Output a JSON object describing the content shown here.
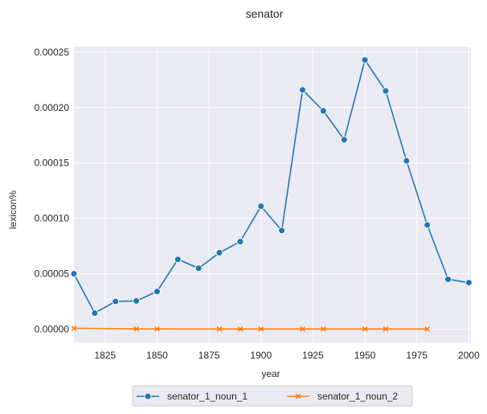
{
  "chart_data": {
    "type": "line",
    "title": "senator",
    "xlabel": "year",
    "ylabel": "lexicon%",
    "xlim": [
      1810,
      2001
    ],
    "ylim": [
      -1.2e-05,
      0.000255
    ],
    "xticks": [
      1825,
      1850,
      1875,
      1900,
      1925,
      1950,
      1975,
      2000
    ],
    "yticks": [
      0.0,
      5e-05,
      0.0001,
      0.00015,
      0.0002,
      0.00025
    ],
    "ytick_labels": [
      "0.00000",
      "0.00005",
      "0.00010",
      "0.00015",
      "0.00020",
      "0.00025"
    ],
    "grid": true,
    "legend_position": "bottom-center, below plot",
    "series": [
      {
        "name": "senator_1_noun_1",
        "color": "#1f77b4",
        "marker": "circle",
        "x": [
          1810,
          1820,
          1830,
          1840,
          1850,
          1860,
          1870,
          1880,
          1890,
          1900,
          1910,
          1920,
          1930,
          1940,
          1950,
          1960,
          1970,
          1980,
          1990,
          2000
        ],
        "y": [
          5e-05,
          1.45e-05,
          2.5e-05,
          2.55e-05,
          3.4e-05,
          6.3e-05,
          5.5e-05,
          6.9e-05,
          7.9e-05,
          0.000111,
          8.9e-05,
          0.000216,
          0.000197,
          0.000171,
          0.000243,
          0.000215,
          0.000152,
          9.4e-05,
          4.5e-05,
          4.2e-05
        ]
      },
      {
        "name": "senator_1_noun_2",
        "color": "#ff7f0e",
        "marker": "x",
        "x": [
          1810,
          1840,
          1850,
          1880,
          1890,
          1900,
          1920,
          1930,
          1950,
          1960,
          1980
        ],
        "y": [
          8e-07,
          2e-07,
          2e-07,
          1e-07,
          1e-07,
          1e-07,
          1e-07,
          1e-07,
          1e-07,
          1e-07,
          1e-07
        ]
      }
    ]
  }
}
